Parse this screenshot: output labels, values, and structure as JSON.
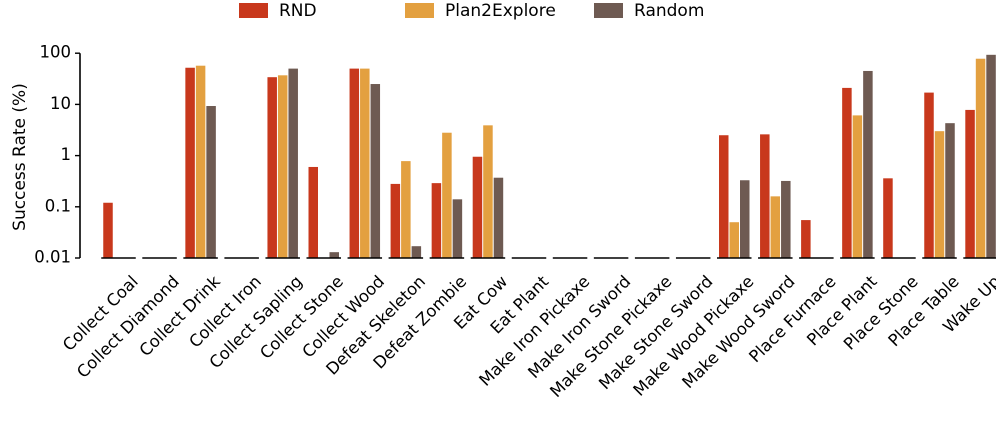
{
  "chart_data": {
    "type": "bar",
    "yscale": "log",
    "ylabel": "Success Rate (%)",
    "ylim": [
      0.01,
      100
    ],
    "yticks": [
      "0.01",
      "0.1",
      "1",
      "10",
      "100"
    ],
    "legend_position": "top-center",
    "categories": [
      "Collect Coal",
      "Collect Diamond",
      "Collect Drink",
      "Collect Iron",
      "Collect Sapling",
      "Collect Stone",
      "Collect Wood",
      "Defeat Skeleton",
      "Defeat Zombie",
      "Eat Cow",
      "Eat Plant",
      "Make Iron Pickaxe",
      "Make Iron Sword",
      "Make Stone Pickaxe",
      "Make Stone Sword",
      "Make Wood Pickaxe",
      "Make Wood Sword",
      "Place Furnace",
      "Place Plant",
      "Place Stone",
      "Place Table",
      "Wake Up"
    ],
    "series": [
      {
        "name": "RND",
        "color": "#c8381c",
        "values": [
          0.12,
          0,
          52,
          0,
          34,
          0.6,
          50,
          0.28,
          0.29,
          0.95,
          0,
          0,
          0,
          0,
          0,
          2.5,
          2.6,
          0.055,
          21,
          0.36,
          17,
          7.8
        ]
      },
      {
        "name": "Plan2Explore",
        "color": "#e3a040",
        "values": [
          0,
          0,
          57,
          0,
          37,
          0,
          50,
          0.78,
          2.8,
          3.9,
          0,
          0,
          0,
          0,
          0,
          0.05,
          0.16,
          0,
          6.1,
          0,
          3.0,
          78
        ]
      },
      {
        "name": "Random",
        "color": "#6e5a52",
        "values": [
          0,
          0,
          9.3,
          0,
          50,
          0.013,
          25,
          0.017,
          0.14,
          0.37,
          0,
          0,
          0,
          0,
          0,
          0.33,
          0.32,
          0,
          45,
          0,
          4.3,
          93
        ]
      }
    ]
  }
}
